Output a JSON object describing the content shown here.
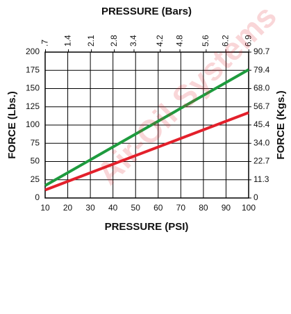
{
  "chart_data": {
    "type": "line",
    "title": "PRESSURE (Bars)",
    "xlabel": "PRESSURE (PSI)",
    "ylabel": "FORCE (Lbs.)",
    "y2label": "FORCE (Kgs.)",
    "watermark": "Air-Oil Systems",
    "x": [
      10,
      100
    ],
    "series": [
      {
        "color": "#1e9b3e",
        "values": [
          17,
          176
        ]
      },
      {
        "color": "#e3202b",
        "values": [
          11,
          117
        ]
      }
    ],
    "xlim": [
      10,
      100
    ],
    "xticks": [
      10,
      20,
      30,
      40,
      50,
      60,
      70,
      80,
      90,
      100
    ],
    "x2lim": [
      0.6895,
      6.895
    ],
    "x2ticks": [
      {
        "value": 0.7,
        "label": ".7"
      },
      1.4,
      2.1,
      2.8,
      3.4,
      4.2,
      4.8,
      5.6,
      6.2,
      6.9
    ],
    "ylim": [
      0,
      200
    ],
    "yticks": [
      0,
      25,
      50,
      75,
      100,
      125,
      150,
      175,
      200
    ],
    "y2lim": [
      0,
      90.7
    ],
    "y2ticks": [
      0,
      11.3,
      22.7,
      {
        "value": 34,
        "label": "34.0"
      },
      45.4,
      56.7,
      {
        "value": 68,
        "label": "68.0"
      },
      79.4,
      90.7
    ],
    "grid": true
  }
}
